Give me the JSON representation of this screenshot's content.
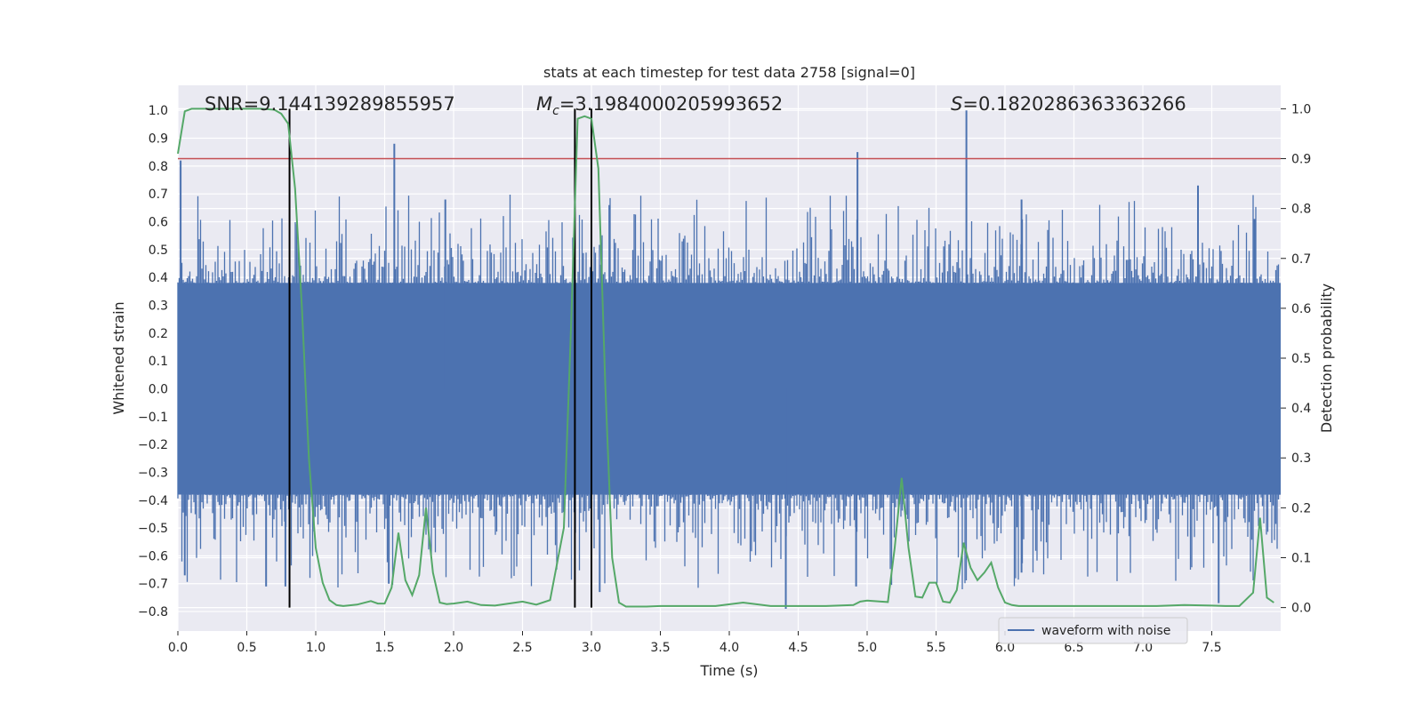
{
  "chart_data": {
    "type": "line",
    "title": "stats at each timestep for test data 2758 [signal=0]",
    "xlabel": "Time (s)",
    "ylabel_left": "Whitened strain",
    "ylabel_right": "Detection probability",
    "xlim": [
      0.0,
      8.0
    ],
    "ylim_left": [
      -0.87,
      1.09
    ],
    "ylim_right": [
      -0.047,
      1.047
    ],
    "grid": true,
    "legend": {
      "location": "lower-right",
      "entries": [
        "waveform with noise"
      ]
    },
    "x_ticks": [
      "0.0",
      "0.5",
      "1.0",
      "1.5",
      "2.0",
      "2.5",
      "3.0",
      "3.5",
      "4.0",
      "4.5",
      "5.0",
      "5.5",
      "6.0",
      "6.5",
      "7.0",
      "7.5"
    ],
    "x_tick_values": [
      0.0,
      0.5,
      1.0,
      1.5,
      2.0,
      2.5,
      3.0,
      3.5,
      4.0,
      4.5,
      5.0,
      5.5,
      6.0,
      6.5,
      7.0,
      7.5
    ],
    "y_left_ticks": [
      "1.0",
      "0.9",
      "0.8",
      "0.7",
      "0.6",
      "0.5",
      "0.4",
      "0.3",
      "0.2",
      "0.1",
      "0.0",
      "−0.1",
      "−0.2",
      "−0.3",
      "−0.4",
      "−0.5",
      "−0.6",
      "−0.7",
      "−0.8"
    ],
    "y_left_tick_values": [
      1.0,
      0.9,
      0.8,
      0.7,
      0.6,
      0.5,
      0.4,
      0.3,
      0.2,
      0.1,
      0.0,
      -0.1,
      -0.2,
      -0.3,
      -0.4,
      -0.5,
      -0.6,
      -0.7,
      -0.8
    ],
    "y_right_ticks": [
      "1.0",
      "0.9",
      "0.8",
      "0.7",
      "0.6",
      "0.5",
      "0.4",
      "0.3",
      "0.2",
      "0.1",
      "0.0"
    ],
    "y_right_tick_values": [
      1.0,
      0.9,
      0.8,
      0.7,
      0.6,
      0.5,
      0.4,
      0.3,
      0.2,
      0.1,
      0.0
    ],
    "annotations": {
      "snr": "SNR=9.144139289855957",
      "mc_symbol": "M",
      "mc_sub": "c",
      "mc_value": "=3.1984000205993652",
      "s_symbol": "S",
      "s_value": "=0.1820286363363266"
    },
    "threshold": {
      "value": 0.9,
      "axis": "right",
      "color": "#c44e52"
    },
    "event_lines": [
      0.81,
      2.88,
      3.0
    ],
    "waveform": {
      "name": "waveform with noise",
      "color": "#4c72b0",
      "x_range": [
        0.0,
        8.0
      ],
      "core_amplitude": 0.38,
      "envelope_seed": 2758,
      "peaks": [
        {
          "t": 0.02,
          "v": 0.82
        },
        {
          "t": 0.05,
          "v": -0.67
        },
        {
          "t": 0.64,
          "v": -0.71
        },
        {
          "t": 0.78,
          "v": -0.71
        },
        {
          "t": 1.57,
          "v": 0.88
        },
        {
          "t": 1.53,
          "v": -0.7
        },
        {
          "t": 1.94,
          "v": 0.68
        },
        {
          "t": 3.06,
          "v": -0.73
        },
        {
          "t": 3.13,
          "v": 0.66
        },
        {
          "t": 4.41,
          "v": -0.79
        },
        {
          "t": 4.93,
          "v": 0.85
        },
        {
          "t": 4.92,
          "v": -0.71
        },
        {
          "t": 5.72,
          "v": 1.0
        },
        {
          "t": 6.12,
          "v": 0.68
        },
        {
          "t": 6.12,
          "v": -0.66
        },
        {
          "t": 7.4,
          "v": 0.73
        },
        {
          "t": 7.55,
          "v": -0.77
        },
        {
          "t": 7.81,
          "v": 0.61
        }
      ]
    },
    "probability": {
      "name": "detection probability",
      "color": "#55a868",
      "x": [
        0.0,
        0.05,
        0.1,
        0.2,
        0.3,
        0.4,
        0.5,
        0.6,
        0.7,
        0.75,
        0.8,
        0.85,
        0.9,
        0.95,
        1.0,
        1.05,
        1.1,
        1.15,
        1.2,
        1.3,
        1.4,
        1.45,
        1.5,
        1.55,
        1.6,
        1.65,
        1.7,
        1.75,
        1.8,
        1.85,
        1.9,
        1.95,
        2.0,
        2.1,
        2.2,
        2.3,
        2.4,
        2.5,
        2.6,
        2.7,
        2.8,
        2.85,
        2.9,
        2.95,
        3.0,
        3.05,
        3.1,
        3.15,
        3.2,
        3.25,
        3.3,
        3.4,
        3.5,
        3.7,
        3.9,
        4.1,
        4.3,
        4.4,
        4.5,
        4.7,
        4.9,
        4.95,
        5.0,
        5.1,
        5.15,
        5.2,
        5.25,
        5.3,
        5.35,
        5.4,
        5.45,
        5.5,
        5.55,
        5.6,
        5.65,
        5.7,
        5.75,
        5.8,
        5.85,
        5.9,
        5.95,
        6.0,
        6.05,
        6.1,
        6.15,
        6.2,
        6.3,
        6.5,
        6.7,
        6.9,
        7.1,
        7.3,
        7.5,
        7.6,
        7.7,
        7.8,
        7.85,
        7.9,
        7.95
      ],
      "y": [
        0.91,
        0.995,
        1.0,
        1.0,
        1.0,
        1.0,
        1.0,
        1.0,
        0.998,
        0.99,
        0.97,
        0.84,
        0.6,
        0.3,
        0.12,
        0.05,
        0.015,
        0.005,
        0.003,
        0.006,
        0.013,
        0.008,
        0.008,
        0.04,
        0.15,
        0.055,
        0.025,
        0.065,
        0.2,
        0.07,
        0.01,
        0.007,
        0.008,
        0.012,
        0.005,
        0.004,
        0.008,
        0.012,
        0.006,
        0.015,
        0.16,
        0.55,
        0.98,
        0.985,
        0.98,
        0.88,
        0.45,
        0.1,
        0.01,
        0.002,
        0.002,
        0.002,
        0.003,
        0.003,
        0.003,
        0.01,
        0.003,
        0.003,
        0.003,
        0.003,
        0.005,
        0.012,
        0.014,
        0.012,
        0.011,
        0.12,
        0.26,
        0.12,
        0.022,
        0.02,
        0.05,
        0.05,
        0.012,
        0.01,
        0.035,
        0.13,
        0.08,
        0.055,
        0.07,
        0.09,
        0.04,
        0.01,
        0.005,
        0.003,
        0.003,
        0.003,
        0.003,
        0.003,
        0.003,
        0.003,
        0.003,
        0.005,
        0.004,
        0.003,
        0.003,
        0.03,
        0.18,
        0.02,
        0.01
      ]
    }
  }
}
